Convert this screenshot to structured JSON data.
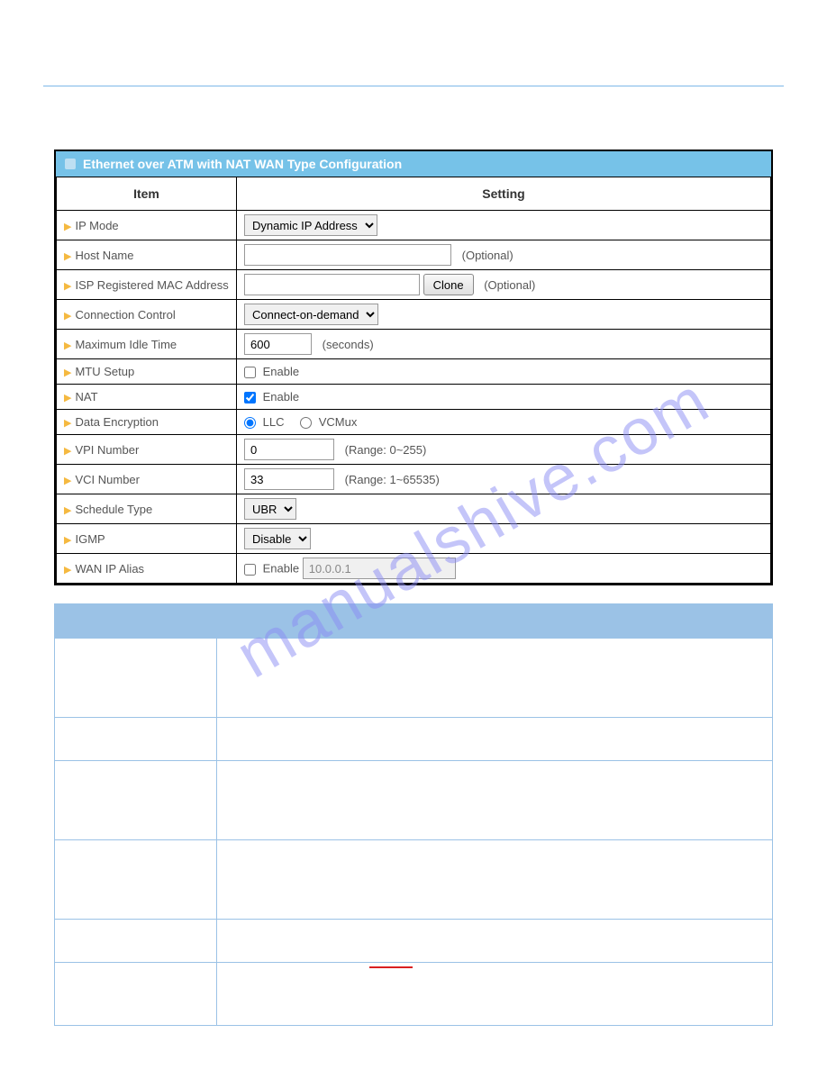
{
  "header_title": "Ethernet over ATM with NAT WAN Type Configuration",
  "columns": {
    "item": "Item",
    "setting": "Setting"
  },
  "watermark_text": "manualshive.com",
  "rows": {
    "ip_mode": {
      "label": "IP Mode",
      "value": "Dynamic IP Address"
    },
    "host_name": {
      "label": "Host Name",
      "value": "",
      "note": "(Optional)"
    },
    "mac_address": {
      "label": "ISP Registered MAC Address",
      "value": "",
      "button": "Clone",
      "note": "(Optional)"
    },
    "connection_control": {
      "label": "Connection Control",
      "value": "Connect-on-demand"
    },
    "max_idle": {
      "label": "Maximum Idle Time",
      "value": "600",
      "note": "(seconds)"
    },
    "mtu_setup": {
      "label": "MTU Setup",
      "checked": false,
      "checkbox_label": "Enable"
    },
    "nat": {
      "label": "NAT",
      "checked": true,
      "checkbox_label": "Enable"
    },
    "data_encryption": {
      "label": "Data Encryption",
      "option1": "LLC",
      "option2": "VCMux",
      "selected": "LLC"
    },
    "vpi": {
      "label": "VPI Number",
      "value": "0",
      "note": "(Range: 0~255)"
    },
    "vci": {
      "label": "VCI Number",
      "value": "33",
      "note": "(Range: 1~65535)"
    },
    "schedule": {
      "label": "Schedule Type",
      "value": "UBR"
    },
    "igmp": {
      "label": "IGMP",
      "value": "Disable"
    },
    "wan_alias": {
      "label": "WAN IP Alias",
      "checked": false,
      "checkbox_label": "Enable",
      "ip_value": "10.0.0.1"
    }
  }
}
